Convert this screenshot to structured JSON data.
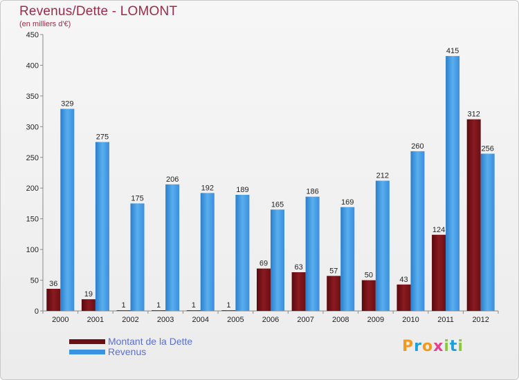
{
  "title": "Revenus/Dette - LOMONT",
  "subtitle": "(en milliers d'€)",
  "colors": {
    "dette": "#7a1418",
    "revenus": "#2f8ede",
    "title": "#9c2a4a",
    "legend_text": "#5a6fd6"
  },
  "legend": {
    "dette_label": "Montant de la Dette",
    "revenus_label": "Revenus"
  },
  "logo": {
    "letters": [
      "P",
      "r",
      "o",
      "x",
      "i",
      "t",
      "i"
    ],
    "colors": [
      "#f29a1f",
      "#1d9fdc",
      "#f29a1f",
      "#e73f8f",
      "#8cc63f",
      "#1d9fdc",
      "#8cc63f"
    ]
  },
  "chart_data": {
    "type": "bar",
    "title": "Revenus/Dette - LOMONT",
    "subtitle": "(en milliers d'€)",
    "categories": [
      "2000",
      "2001",
      "2002",
      "2003",
      "2004",
      "2005",
      "2006",
      "2007",
      "2008",
      "2009",
      "2010",
      "2011",
      "2012"
    ],
    "series": [
      {
        "name": "Montant de la Dette",
        "values": [
          36,
          19,
          1,
          1,
          1,
          1,
          69,
          63,
          57,
          50,
          43,
          124,
          312
        ]
      },
      {
        "name": "Revenus",
        "values": [
          329,
          275,
          175,
          206,
          192,
          189,
          165,
          186,
          169,
          212,
          260,
          415,
          256
        ]
      }
    ],
    "ylim": [
      0,
      450
    ],
    "yticks": [
      0,
      50,
      100,
      150,
      200,
      250,
      300,
      350,
      400,
      450
    ],
    "grid": false,
    "legend_position": "bottom-left"
  }
}
